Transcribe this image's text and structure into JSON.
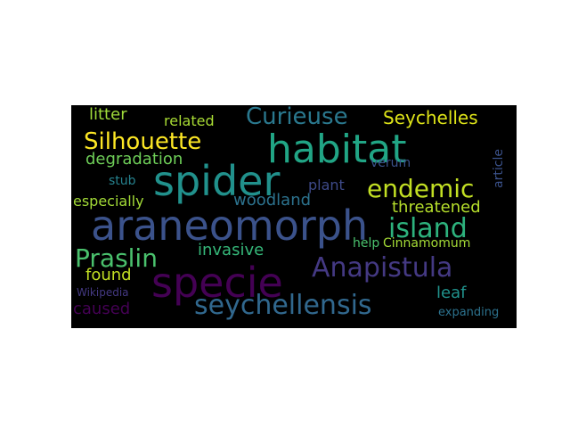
{
  "words": [
    {
      "text": "araneomorph",
      "color": "#3b528b"
    },
    {
      "text": "spider",
      "color": "#21918c"
    },
    {
      "text": "habitat",
      "color": "#21a585"
    },
    {
      "text": "specie",
      "color": "#440154"
    },
    {
      "text": "Anapistula",
      "color": "#443983"
    },
    {
      "text": "seychellensis",
      "color": "#31688e"
    },
    {
      "text": "island",
      "color": "#2db27d"
    },
    {
      "text": "endemic",
      "color": "#c2df23"
    },
    {
      "text": "Praslin",
      "color": "#4ac16d"
    },
    {
      "text": "Silhouette",
      "color": "#fde725"
    },
    {
      "text": "Curieuse",
      "color": "#2a788e"
    },
    {
      "text": "Seychelles",
      "color": "#dde318"
    },
    {
      "text": "threatened",
      "color": "#b5de2b"
    },
    {
      "text": "woodland",
      "color": "#2c728e"
    },
    {
      "text": "invasive",
      "color": "#35b779"
    },
    {
      "text": "litter",
      "color": "#9fda3a"
    },
    {
      "text": "related",
      "color": "#a8db34"
    },
    {
      "text": "degradation",
      "color": "#6ece58"
    },
    {
      "text": "especially",
      "color": "#a2da37"
    },
    {
      "text": "found",
      "color": "#c2df23"
    },
    {
      "text": "caused",
      "color": "#440154"
    },
    {
      "text": "leaf",
      "color": "#20928c"
    },
    {
      "text": "plant",
      "color": "#3e4a89"
    },
    {
      "text": "stub",
      "color": "#26828e"
    },
    {
      "text": "help",
      "color": "#4ac16d"
    },
    {
      "text": "Cinnamomum",
      "color": "#a5db36"
    },
    {
      "text": "verum",
      "color": "#3b528b"
    },
    {
      "text": "article",
      "color": "#3b528b"
    },
    {
      "text": "Wikipedia",
      "color": "#443983"
    },
    {
      "text": "expanding",
      "color": "#2c728e"
    }
  ]
}
